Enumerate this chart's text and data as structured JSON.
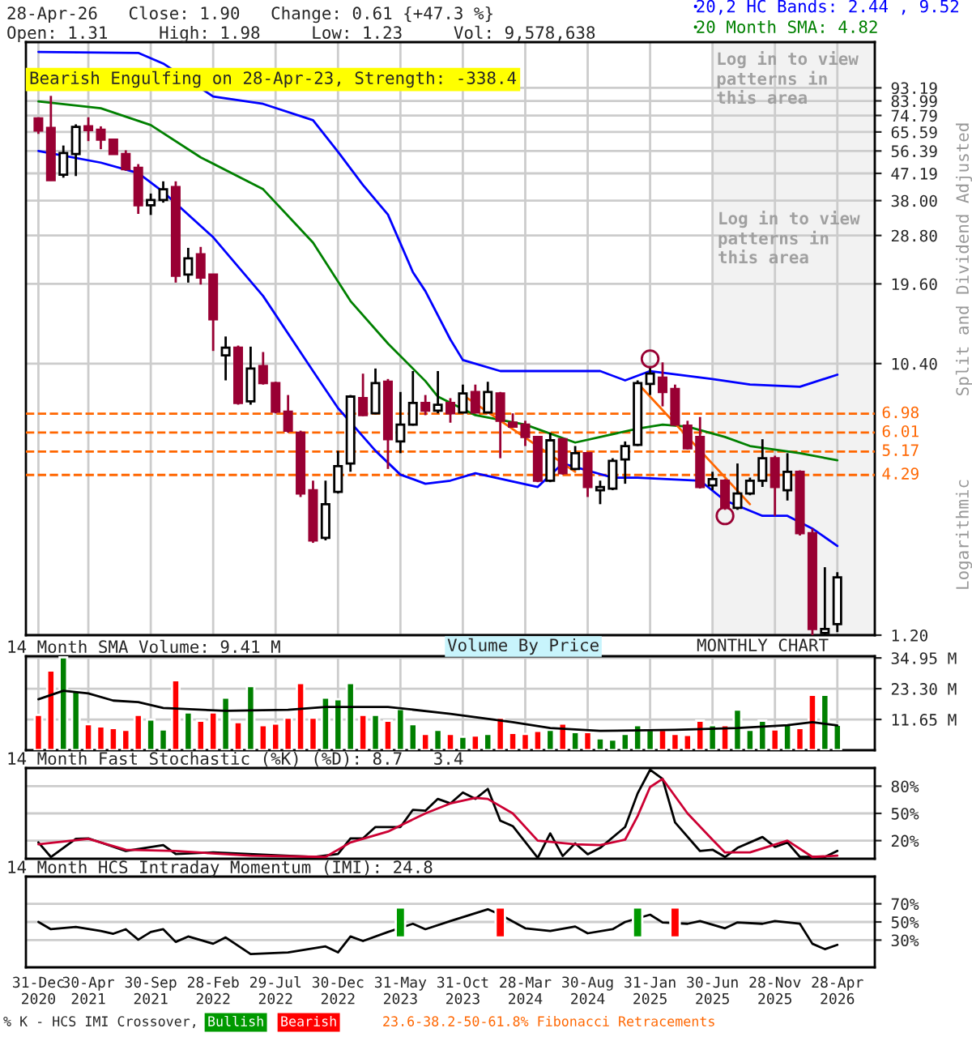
{
  "chart_data": [
    {
      "type": "candlestick",
      "title": "28-Apr-26   Close: 1.90   Change: 0.61 {+47.3 %}",
      "subtitle": "Open: 1.31     High: 1.98     Low: 1.23     Vol: 9,578,638",
      "x": [
        "2020-12",
        "2021-01",
        "2021-02",
        "2021-03",
        "2021-04",
        "2021-05",
        "2021-06",
        "2021-07",
        "2021-08",
        "2021-09",
        "2021-10",
        "2021-11",
        "2021-12",
        "2022-01",
        "2022-02",
        "2022-03",
        "2022-04",
        "2022-05",
        "2022-06",
        "2022-07",
        "2022-08",
        "2022-09",
        "2022-10",
        "2022-11",
        "2022-12",
        "2023-01",
        "2023-02",
        "2023-03",
        "2023-04",
        "2023-05",
        "2023-06",
        "2023-07",
        "2023-08",
        "2023-09",
        "2023-10",
        "2023-11",
        "2023-12",
        "2024-01",
        "2024-02",
        "2024-03",
        "2024-04",
        "2024-05",
        "2024-06",
        "2024-07",
        "2024-08",
        "2024-09",
        "2024-10",
        "2024-11",
        "2024-12",
        "2025-01",
        "2025-02",
        "2025-03",
        "2025-04",
        "2025-05",
        "2025-06",
        "2025-07",
        "2025-08",
        "2025-09",
        "2025-10",
        "2025-11",
        "2025-12",
        "2026-01",
        "2026-02",
        "2026-03",
        "2026-04"
      ],
      "ohlc": [
        [
          73.1,
          73.7,
          64.6,
          66.3
        ],
        [
          67.7,
          87.4,
          44.5,
          44.7
        ],
        [
          46.7,
          58.9,
          45.6,
          55.5
        ],
        [
          55.0,
          69.7,
          46.2,
          68.3
        ],
        [
          68.6,
          73.7,
          61.0,
          66.6
        ],
        [
          66.8,
          68.6,
          57.2,
          61.7
        ],
        [
          61.7,
          62.0,
          54.8,
          55.0
        ],
        [
          55.0,
          56.7,
          48.2,
          48.8
        ],
        [
          49.3,
          50.8,
          34.2,
          36.6
        ],
        [
          36.6,
          40.2,
          33.9,
          38.2
        ],
        [
          38.2,
          44.3,
          37.4,
          41.6
        ],
        [
          42.3,
          44.3,
          19.8,
          20.9
        ],
        [
          21.1,
          26.1,
          19.8,
          24.0
        ],
        [
          24.8,
          26.3,
          19.5,
          20.6
        ],
        [
          21.1,
          21.2,
          11.5,
          14.8
        ],
        [
          11.1,
          12.9,
          9.1,
          11.8
        ],
        [
          11.8,
          12.0,
          7.5,
          7.6
        ],
        [
          7.7,
          11.9,
          7.5,
          10.0
        ],
        [
          10.2,
          11.4,
          8.8,
          8.9
        ],
        [
          8.9,
          9.0,
          7.0,
          7.1
        ],
        [
          7.1,
          8.1,
          6.0,
          6.1
        ],
        [
          6.0,
          6.1,
          3.6,
          3.7
        ],
        [
          3.8,
          4.1,
          2.5,
          2.55
        ],
        [
          2.6,
          4.1,
          2.55,
          3.4
        ],
        [
          3.75,
          5.2,
          3.7,
          4.6
        ],
        [
          4.7,
          8.1,
          4.4,
          8.0
        ],
        [
          7.9,
          9.6,
          6.85,
          6.9
        ],
        [
          7.0,
          10.0,
          6.95,
          8.9
        ],
        [
          9.0,
          9.2,
          4.5,
          5.7
        ],
        [
          5.6,
          8.3,
          5.1,
          6.4
        ],
        [
          6.4,
          9.8,
          6.35,
          7.6
        ],
        [
          7.6,
          8.1,
          6.9,
          7.15
        ],
        [
          7.15,
          9.8,
          7.0,
          7.5
        ],
        [
          7.6,
          7.9,
          6.5,
          7.0
        ],
        [
          7.05,
          8.8,
          7.0,
          8.2
        ],
        [
          8.3,
          8.8,
          7.0,
          7.05
        ],
        [
          7.05,
          9.0,
          7.0,
          8.3
        ],
        [
          8.2,
          8.3,
          4.9,
          6.6
        ],
        [
          6.5,
          7.0,
          6.25,
          6.3
        ],
        [
          6.4,
          6.6,
          5.4,
          5.8
        ],
        [
          5.8,
          5.85,
          4.05,
          4.1
        ],
        [
          4.1,
          6.0,
          4.05,
          5.65
        ],
        [
          5.7,
          5.75,
          4.3,
          4.35
        ],
        [
          4.5,
          5.4,
          4.45,
          5.1
        ],
        [
          5.1,
          5.15,
          3.6,
          3.9
        ],
        [
          3.8,
          4.1,
          3.4,
          3.9
        ],
        [
          3.85,
          4.9,
          3.8,
          4.8
        ],
        [
          4.85,
          5.6,
          4.0,
          5.4
        ],
        [
          5.45,
          9.1,
          5.4,
          8.9
        ],
        [
          8.85,
          10.1,
          8.1,
          9.6
        ],
        [
          9.3,
          10.5,
          7.4,
          8.3
        ],
        [
          8.5,
          8.8,
          6.35,
          6.4
        ],
        [
          6.35,
          6.6,
          5.25,
          5.3
        ],
        [
          5.8,
          6.8,
          3.85,
          3.9
        ],
        [
          3.95,
          4.4,
          3.8,
          4.15
        ],
        [
          4.1,
          4.15,
          3.25,
          3.3
        ],
        [
          3.3,
          4.7,
          3.25,
          3.7
        ],
        [
          3.7,
          4.2,
          3.65,
          4.1
        ],
        [
          4.1,
          5.7,
          3.9,
          4.9
        ],
        [
          4.9,
          5.0,
          3.1,
          3.9
        ],
        [
          3.8,
          5.1,
          3.5,
          4.4
        ],
        [
          4.4,
          4.45,
          2.65,
          2.7
        ],
        [
          2.7,
          2.8,
          1.2,
          1.26
        ],
        [
          1.22,
          2.06,
          1.2,
          1.26
        ],
        [
          1.31,
          1.98,
          1.23,
          1.9
        ]
      ],
      "series": [
        {
          "type": "line",
          "name": "20,2 HC Bands: 2.44 , 9.52",
          "color": "#0000ff",
          "x": [
            "2020-12",
            "2021-08",
            "2021-10",
            "2022-02",
            "2022-06",
            "2022-10",
            "2022-12",
            "2023-02",
            "2023-04",
            "2023-06",
            "2023-07",
            "2023-09",
            "2023-10",
            "2024-01",
            "2024-09",
            "2024-11",
            "2025-01",
            "2025-06",
            "2025-09",
            "2026-01",
            "2026-04"
          ],
          "values": [
            124,
            123,
            113,
            87,
            82,
            72,
            56,
            43,
            34,
            21.5,
            18.5,
            12.6,
            10.7,
            9.8,
            9.8,
            9.1,
            9.8,
            9.2,
            8.8,
            8.65,
            9.52
          ]
        },
        {
          "type": "line",
          "color": "#0000ff",
          "x": [
            "2020-12",
            "2021-05",
            "2021-08",
            "2021-10",
            "2022-02",
            "2022-06",
            "2022-10",
            "2022-12",
            "2023-03",
            "2023-05",
            "2023-07",
            "2023-09",
            "2023-11",
            "2024-04",
            "2024-06",
            "2024-10",
            "2024-12",
            "2025-05",
            "2025-07",
            "2025-10",
            "2025-12",
            "2026-02",
            "2026-04"
          ],
          "values": [
            56.4,
            51.4,
            47.3,
            40.7,
            28.4,
            17.8,
            9.8,
            7.3,
            5.2,
            4.3,
            4.0,
            4.1,
            4.35,
            3.9,
            4.7,
            4.2,
            4.2,
            4.1,
            3.5,
            3.1,
            3.1,
            2.8,
            2.44
          ]
        },
        {
          "type": "line",
          "name": "20 Month SMA: 4.82",
          "color": "#008000",
          "x": [
            "2020-12",
            "2021-05",
            "2021-09",
            "2022-01",
            "2022-06",
            "2022-10",
            "2023-01",
            "2023-04",
            "2023-07",
            "2023-08",
            "2023-11",
            "2024-03",
            "2024-07",
            "2024-12",
            "2025-02",
            "2025-04",
            "2025-07",
            "2025-09",
            "2026-01",
            "2026-04"
          ],
          "values": [
            83.7,
            79.2,
            69.3,
            53.6,
            41.6,
            27.2,
            17.1,
            12.2,
            9.05,
            8.0,
            6.9,
            6.4,
            5.55,
            6.2,
            6.4,
            6.3,
            5.8,
            5.4,
            5.1,
            4.82
          ]
        },
        {
          "type": "line",
          "color": "#ff6600",
          "x": [
            "2023-10",
            "2024-07"
          ],
          "values": [
            8.1,
            4.4
          ]
        },
        {
          "type": "line",
          "color": "#ff6600",
          "x": [
            "2024-12",
            "2025-09"
          ],
          "values": [
            8.9,
            3.4
          ]
        },
        {
          "type": "scatter",
          "marker": "circle",
          "color": "#990033",
          "x": [
            "2025-01",
            "2025-07"
          ],
          "values": [
            10.8,
            3.1
          ]
        }
      ],
      "xlim": [
        "2020-11",
        "2026-07"
      ],
      "xticks": [
        {
          "value": "2020-12",
          "label": null
        },
        {
          "value": "2021-04",
          "label": null
        },
        {
          "value": "2021-09",
          "label": null
        },
        {
          "value": "2022-02",
          "label": null
        },
        {
          "value": "2022-07",
          "label": null
        },
        {
          "value": "2022-12",
          "label": null
        },
        {
          "value": "2023-05",
          "label": null
        },
        {
          "value": "2023-10",
          "label": null
        },
        {
          "value": "2024-03",
          "label": null
        },
        {
          "value": "2024-08",
          "label": null
        },
        {
          "value": "2025-01",
          "label": null
        },
        {
          "value": "2025-06",
          "label": null
        },
        {
          "value": "2025-11",
          "label": null
        },
        {
          "value": "2026-04",
          "label": null
        }
      ],
      "log": true,
      "ylim": [
        1.2,
        134
      ],
      "yticks": [
        93.19,
        83.99,
        74.79,
        65.59,
        56.39,
        47.19,
        {
          "value": 38,
          "label": "38.00"
        },
        {
          "value": 28.8,
          "label": "28.80"
        },
        {
          "value": 19.6,
          "label": "19.60"
        },
        {
          "value": 10.4,
          "label": "10.40"
        },
        {
          "value": 1.2,
          "label": "1.20"
        }
      ],
      "grid": true,
      "legend": "top right",
      "tick_labels": "y",
      "ref_lines": [
        {
          "axis": "y",
          "value": 6.98,
          "label": "6.98",
          "color": "#ff6600",
          "line_style": "dashed"
        },
        {
          "axis": "y",
          "value": 6.01,
          "label": "6.01",
          "color": "#ff6600",
          "line_style": "dashed"
        },
        {
          "axis": "y",
          "value": 5.17,
          "label": "5.17",
          "color": "#ff6600",
          "line_style": "dashed"
        },
        {
          "axis": "y",
          "value": 4.29,
          "label": "4.29",
          "color": "#ff6600",
          "line_style": "dashed"
        }
      ],
      "bands": [
        {
          "axis": "x",
          "from": "2025-06",
          "to": "2026-07",
          "label": "Log in to view patterns in this area",
          "color": "#f2f2f2"
        }
      ],
      "annotations": [
        "Bearish Engulfing on 28-Apr-23, Strength: -338.4",
        "Log in to view patterns in this area",
        "Split and Dividend Adjusted",
        "Logarithmic",
        "23.6-38.2-50-61.8% Fibonacci Retracements"
      ]
    },
    {
      "type": "bar",
      "title": "14 Month SMA Volume: 9.41 M",
      "x": [
        "2020-12",
        "2021-01",
        "2021-02",
        "2021-03",
        "2021-04",
        "2021-05",
        "2021-06",
        "2021-07",
        "2021-08",
        "2021-09",
        "2021-10",
        "2021-11",
        "2021-12",
        "2022-01",
        "2022-02",
        "2022-03",
        "2022-04",
        "2022-05",
        "2022-06",
        "2022-07",
        "2022-08",
        "2022-09",
        "2022-10",
        "2022-11",
        "2022-12",
        "2023-01",
        "2023-02",
        "2023-03",
        "2023-04",
        "2023-05",
        "2023-06",
        "2023-07",
        "2023-08",
        "2023-09",
        "2023-10",
        "2023-11",
        "2023-12",
        "2024-01",
        "2024-02",
        "2024-03",
        "2024-04",
        "2024-05",
        "2024-06",
        "2024-07",
        "2024-08",
        "2024-09",
        "2024-10",
        "2024-11",
        "2024-12",
        "2025-01",
        "2025-02",
        "2025-03",
        "2025-04",
        "2025-05",
        "2025-06",
        "2025-07",
        "2025-08",
        "2025-09",
        "2025-10",
        "2025-11",
        "2025-12",
        "2026-01",
        "2026-02",
        "2026-03",
        "2026-04"
      ],
      "values": [
        13.4,
        30.2,
        35.2,
        22.5,
        9.9,
        9.0,
        8.4,
        7.7,
        13.4,
        11.65,
        7.9,
        26.5,
        14.3,
        11.2,
        14.3,
        19.9,
        10.6,
        24.3,
        9.5,
        10.1,
        12.3,
        25.4,
        12.3,
        19.9,
        19.3,
        25.4,
        13.4,
        13.4,
        11.2,
        15.6,
        9.9,
        6.2,
        7.7,
        6.2,
        5.1,
        5.6,
        6.2,
        12.3,
        6.6,
        6.2,
        7.3,
        7.7,
        10.1,
        6.9,
        6.9,
        4.5,
        4.0,
        6.2,
        9.5,
        7.7,
        7.7,
        6.2,
        5.8,
        11.2,
        9.5,
        9.5,
        15.4,
        7.7,
        11.2,
        7.9,
        9.9,
        8.4,
        21.0,
        21.0,
        9.6
      ],
      "colors": [
        "#ff0000",
        "#ff0000",
        "#008000",
        "#008000",
        "#ff0000",
        "#ff0000",
        "#ff0000",
        "#ff0000",
        "#ff0000",
        "#008000",
        "#008000",
        "#ff0000",
        "#008000",
        "#ff0000",
        "#ff0000",
        "#008000",
        "#ff0000",
        "#008000",
        "#ff0000",
        "#ff0000",
        "#ff0000",
        "#ff0000",
        "#ff0000",
        "#008000",
        "#008000",
        "#008000",
        "#ff0000",
        "#008000",
        "#ff0000",
        "#008000",
        "#008000",
        "#ff0000",
        "#008000",
        "#ff0000",
        "#008000",
        "#ff0000",
        "#008000",
        "#ff0000",
        "#ff0000",
        "#ff0000",
        "#ff0000",
        "#008000",
        "#ff0000",
        "#008000",
        "#ff0000",
        "#008000",
        "#008000",
        "#008000",
        "#008000",
        "#008000",
        "#ff0000",
        "#ff0000",
        "#ff0000",
        "#ff0000",
        "#008000",
        "#ff0000",
        "#008000",
        "#008000",
        "#008000",
        "#ff0000",
        "#008000",
        "#ff0000",
        "#ff0000",
        "#008000",
        "#008000"
      ],
      "series": [
        {
          "type": "line",
          "color": "#000000",
          "x": [
            "2020-12",
            "2021-02",
            "2021-04",
            "2021-06",
            "2021-08",
            "2021-10",
            "2022-03",
            "2022-08",
            "2022-11",
            "2023-04",
            "2023-09",
            "2024-02",
            "2024-05",
            "2024-09",
            "2025-03",
            "2025-08",
            "2025-12",
            "2026-02",
            "2026-04"
          ],
          "values": [
            19.3,
            22.5,
            21.5,
            18.8,
            18.2,
            16.0,
            14.9,
            15.3,
            16.4,
            16.4,
            13.8,
            10.6,
            8.4,
            7.3,
            7.7,
            8.4,
            9.5,
            10.6,
            9.41
          ]
        }
      ],
      "xlim": [
        "2020-11",
        "2026-07"
      ],
      "xticks": [
        {
          "value": "2020-12",
          "label": null
        },
        {
          "value": "2021-04",
          "label": null
        },
        {
          "value": "2021-09",
          "label": null
        },
        {
          "value": "2022-02",
          "label": null
        },
        {
          "value": "2022-07",
          "label": null
        },
        {
          "value": "2022-12",
          "label": null
        },
        {
          "value": "2023-05",
          "label": null
        },
        {
          "value": "2023-10",
          "label": null
        },
        {
          "value": "2024-03",
          "label": null
        },
        {
          "value": "2024-08",
          "label": null
        },
        {
          "value": "2025-01",
          "label": null
        },
        {
          "value": "2025-06",
          "label": null
        },
        {
          "value": "2025-11",
          "label": null
        },
        {
          "value": "2026-04",
          "label": null
        }
      ],
      "ylim": [
        0,
        35.6
      ],
      "yticks": [
        {
          "value": 11.65,
          "label": "11.65 M"
        },
        {
          "value": 23.3,
          "label": "23.30 M"
        },
        {
          "value": 34.95,
          "label": "34.95 M"
        }
      ],
      "grid": true,
      "tick_labels": "y",
      "annotations": [
        "Volume By Price",
        "MONTHLY CHART"
      ]
    },
    {
      "type": "line",
      "title": "14 Month Fast Stochastic (%K) (%D): 8.7   3.4",
      "series": [
        {
          "color": "#000000",
          "x": [
            "2020-12",
            "2021-01",
            "2021-03",
            "2021-04",
            "2021-07",
            "2021-10",
            "2021-11",
            "2022-02",
            "2022-07",
            "2022-10",
            "2022-12",
            "2023-01",
            "2023-02",
            "2023-03",
            "2023-05",
            "2023-06",
            "2023-07",
            "2023-08",
            "2023-09",
            "2023-10",
            "2023-11",
            "2023-12",
            "2024-01",
            "2024-02",
            "2024-04",
            "2024-05",
            "2024-06",
            "2024-07",
            "2024-08",
            "2024-09",
            "2024-11",
            "2024-12",
            "2025-01",
            "2025-02",
            "2025-03",
            "2025-05",
            "2025-06",
            "2025-07",
            "2025-08",
            "2025-10",
            "2025-11",
            "2025-12",
            "2026-01",
            "2026-03",
            "2026-04"
          ],
          "values": [
            18,
            2,
            22,
            22.5,
            8.5,
            15,
            5.3,
            7,
            4,
            2,
            5.3,
            22.5,
            22.5,
            35,
            35,
            54,
            53,
            66,
            61,
            73,
            66,
            77,
            42,
            36,
            1,
            28,
            3,
            17,
            5,
            12,
            35,
            72,
            98,
            88,
            40,
            8.5,
            10,
            2,
            12,
            24,
            13,
            18,
            2,
            2,
            8.7
          ]
        },
        {
          "color": "#cc0033",
          "x": [
            "2020-12",
            "2021-04",
            "2021-07",
            "2021-11",
            "2022-05",
            "2022-11",
            "2023-01",
            "2023-04",
            "2023-07",
            "2023-09",
            "2023-11",
            "2023-12",
            "2024-02",
            "2024-04",
            "2024-07",
            "2024-09",
            "2024-11",
            "2024-12",
            "2025-01",
            "2025-02",
            "2025-04",
            "2025-06",
            "2025-07",
            "2025-09",
            "2025-12",
            "2026-02",
            "2026-04"
          ],
          "values": [
            16,
            22,
            10,
            8.5,
            3.4,
            2,
            18,
            30,
            50,
            61,
            67,
            66,
            50,
            20,
            16,
            15,
            21,
            47,
            79,
            88,
            50,
            21,
            7,
            7,
            20,
            2,
            3.4
          ]
        }
      ],
      "xlim": [
        "2020-11",
        "2026-07"
      ],
      "ylim": [
        0,
        100
      ],
      "yticks": [
        {
          "value": 20,
          "label": "20%"
        },
        {
          "value": 50,
          "label": "50%"
        },
        {
          "value": 80,
          "label": "80%"
        }
      ],
      "grid": "y",
      "tick_labels": "y"
    },
    {
      "type": "line",
      "title": "14 Month HCS Intraday Momentum (IMI): 24.8",
      "legend_title": "% K - HCS IMI Crossover,",
      "series": [
        {
          "color": "#000000",
          "x": [
            "2020-12",
            "2021-01",
            "2021-03",
            "2021-05",
            "2021-06",
            "2021-07",
            "2021-08",
            "2021-09",
            "2021-10",
            "2021-11",
            "2021-12",
            "2022-02",
            "2022-03",
            "2022-05",
            "2022-08",
            "2022-11",
            "2022-12",
            "2023-01",
            "2023-02",
            "2023-04",
            "2023-06",
            "2023-07",
            "2023-09",
            "2023-12",
            "2024-01",
            "2024-03",
            "2024-05",
            "2024-07",
            "2024-08",
            "2024-10",
            "2024-11",
            "2025-01",
            "2025-02",
            "2025-04",
            "2025-05",
            "2025-07",
            "2025-08",
            "2025-10",
            "2025-11",
            "2026-01",
            "2026-02",
            "2026-03",
            "2026-04"
          ],
          "values": [
            50,
            42,
            44.5,
            40,
            37,
            42,
            30.5,
            39,
            42,
            28,
            34,
            26,
            33,
            14.6,
            16.5,
            23,
            16.5,
            34,
            29,
            39,
            48,
            42,
            51,
            64,
            58,
            43,
            40,
            45,
            37.5,
            42,
            50,
            58,
            49.5,
            48,
            51,
            43,
            49.5,
            48,
            51,
            48,
            26,
            20,
            24.8
          ]
        },
        {
          "type": "bar",
          "name": "Bullish",
          "color": "#009900",
          "x": [
            "2023-05",
            "2024-12"
          ],
          "base": [
            33,
            33
          ],
          "values": [
            33,
            33
          ]
        },
        {
          "type": "bar",
          "name": "Bearish",
          "color": "#ff0000",
          "x": [
            "2024-01",
            "2025-03"
          ],
          "base": [
            33,
            33
          ],
          "values": [
            33,
            33
          ]
        }
      ],
      "xlim": [
        "2020-11",
        "2026-07"
      ],
      "xticks": [
        {
          "value": "2020-12",
          "label": "31-Dec\n2020"
        },
        {
          "value": "2021-04",
          "label": "30-Apr\n2021"
        },
        {
          "value": "2021-09",
          "label": "30-Sep\n2021"
        },
        {
          "value": "2022-02",
          "label": "28-Feb\n2022"
        },
        {
          "value": "2022-07",
          "label": "29-Jul\n2022"
        },
        {
          "value": "2022-12",
          "label": "30-Dec\n2022"
        },
        {
          "value": "2023-05",
          "label": "31-May\n2023"
        },
        {
          "value": "2023-10",
          "label": "31-Oct\n2023"
        },
        {
          "value": "2024-03",
          "label": "28-Mar\n2024"
        },
        {
          "value": "2024-08",
          "label": "30-Aug\n2024"
        },
        {
          "value": "2025-01",
          "label": "31-Jan\n2025"
        },
        {
          "value": "2025-06",
          "label": "30-Jun\n2025"
        },
        {
          "value": "2025-11",
          "label": "28-Nov\n2025"
        },
        {
          "value": "2026-04",
          "label": "28-Apr\n2026"
        }
      ],
      "ylim": [
        0,
        100
      ],
      "yticks": [
        {
          "value": 30,
          "label": "30%"
        },
        {
          "value": 50,
          "label": "50%"
        },
        {
          "value": 70,
          "label": "70%"
        }
      ],
      "grid": "y",
      "legend": "bottom"
    }
  ]
}
